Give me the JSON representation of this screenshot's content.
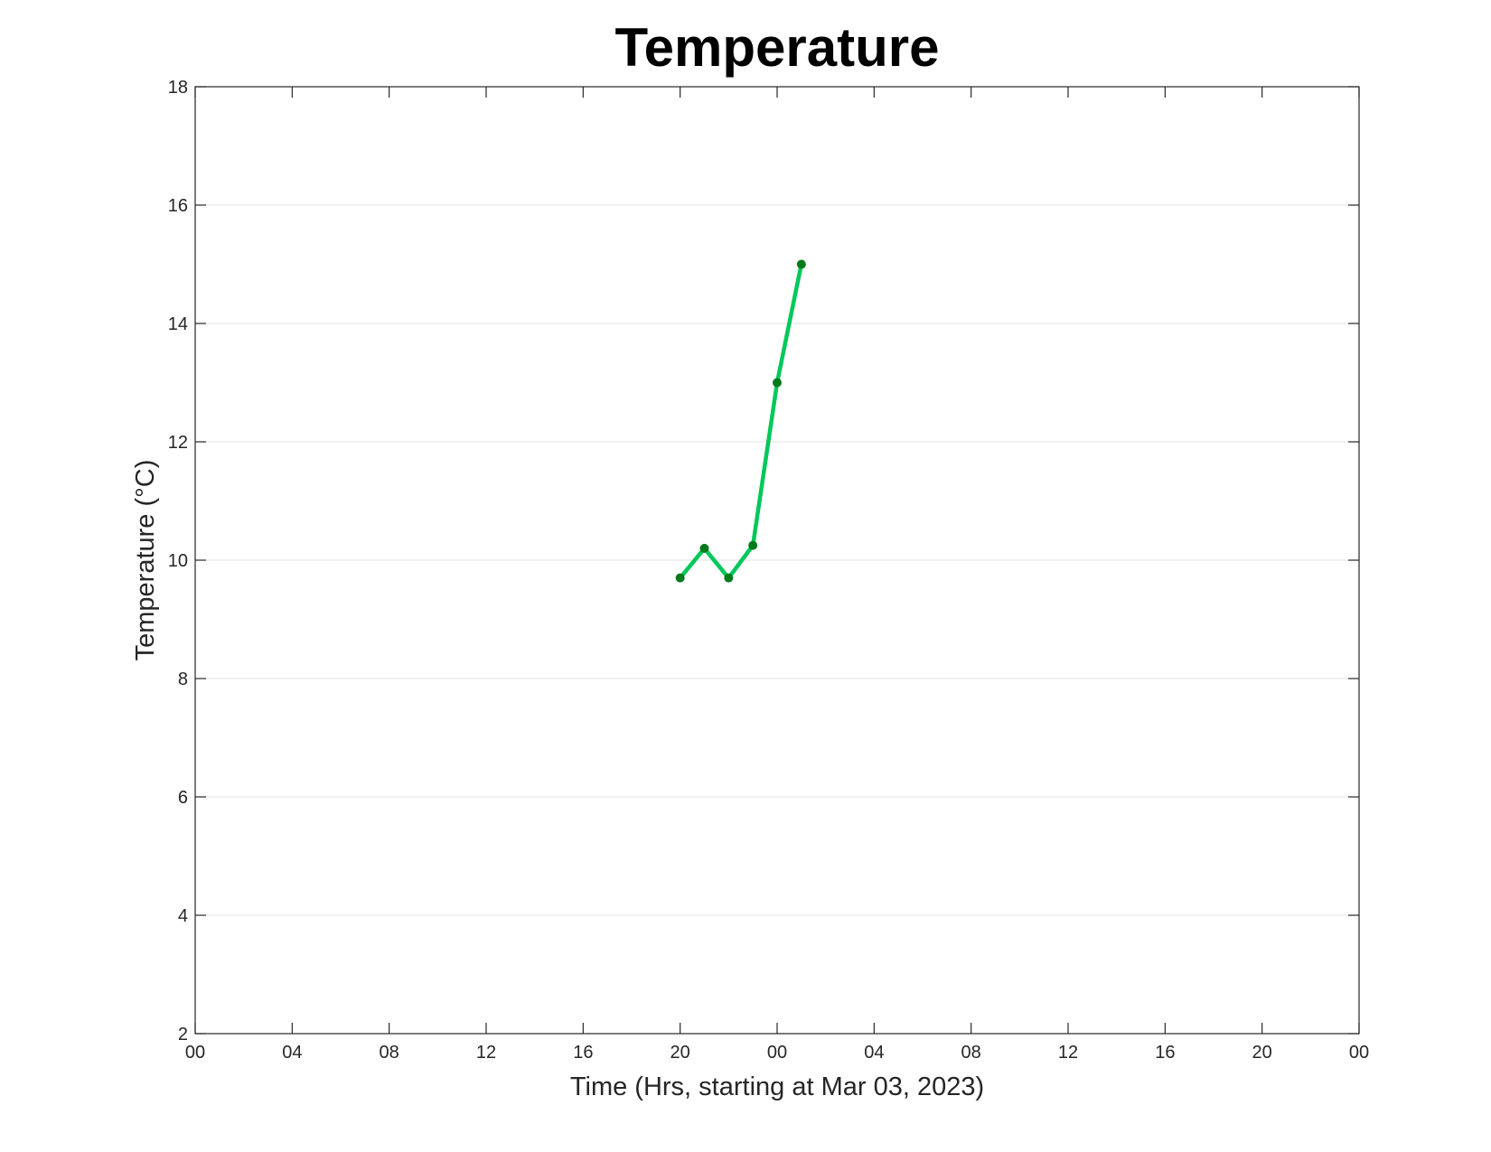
{
  "chart_data": {
    "type": "line",
    "title": "Temperature",
    "xlabel": "Time (Hrs, starting at Mar 03, 2023)",
    "ylabel": "Temperature (°C)",
    "x_unit": "datetime",
    "xlim": [
      "2023-03-03 00:00",
      "2023-03-05 00:00"
    ],
    "ylim": [
      2,
      18
    ],
    "x_ticks": [
      {
        "value": "2023-03-03 00:00",
        "label": "00"
      },
      {
        "value": "2023-03-03 04:00",
        "label": "04"
      },
      {
        "value": "2023-03-03 08:00",
        "label": "08"
      },
      {
        "value": "2023-03-03 12:00",
        "label": "12"
      },
      {
        "value": "2023-03-03 16:00",
        "label": "16"
      },
      {
        "value": "2023-03-03 20:00",
        "label": "20"
      },
      {
        "value": "2023-03-04 00:00",
        "label": "00"
      },
      {
        "value": "2023-03-04 04:00",
        "label": "04"
      },
      {
        "value": "2023-03-04 08:00",
        "label": "08"
      },
      {
        "value": "2023-03-04 12:00",
        "label": "12"
      },
      {
        "value": "2023-03-04 16:00",
        "label": "16"
      },
      {
        "value": "2023-03-04 20:00",
        "label": "20"
      },
      {
        "value": "2023-03-05 00:00",
        "label": "00"
      }
    ],
    "y_ticks": [
      2,
      4,
      6,
      8,
      10,
      12,
      14,
      16,
      18
    ],
    "grid": "y-major",
    "legend": "none",
    "series": [
      {
        "color": "#00c85a",
        "marker_color": "#007a1a",
        "x": [
          "2023-03-03 20:00",
          "2023-03-03 21:00",
          "2023-03-03 22:00",
          "2023-03-03 23:00",
          "2023-03-04 00:00",
          "2023-03-04 01:00"
        ],
        "values": [
          9.7,
          10.2,
          9.7,
          10.25,
          13.0,
          15.0
        ]
      }
    ]
  }
}
